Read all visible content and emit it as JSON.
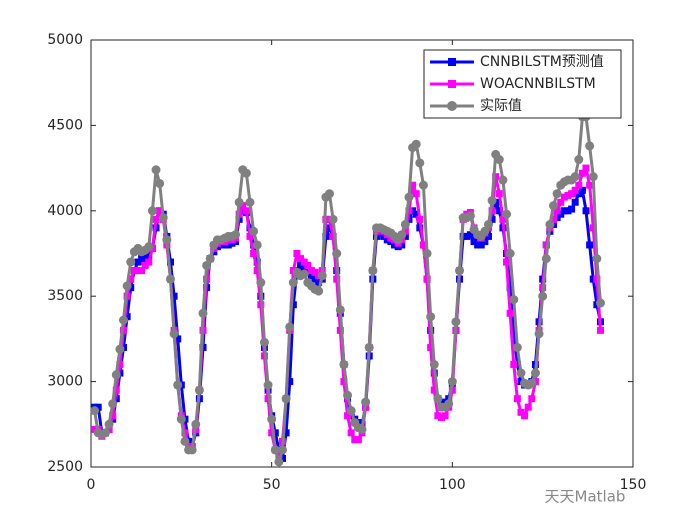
{
  "chart_data": {
    "type": "line",
    "x": [
      1,
      2,
      3,
      4,
      5,
      6,
      7,
      8,
      9,
      10,
      11,
      12,
      13,
      14,
      15,
      16,
      17,
      18,
      19,
      20,
      21,
      22,
      23,
      24,
      25,
      26,
      27,
      28,
      29,
      30,
      31,
      32,
      33,
      34,
      35,
      36,
      37,
      38,
      39,
      40,
      41,
      42,
      43,
      44,
      45,
      46,
      47,
      48,
      49,
      50,
      51,
      52,
      53,
      54,
      55,
      56,
      57,
      58,
      59,
      60,
      61,
      62,
      63,
      64,
      65,
      66,
      67,
      68,
      69,
      70,
      71,
      72,
      73,
      74,
      75,
      76,
      77,
      78,
      79,
      80,
      81,
      82,
      83,
      84,
      85,
      86,
      87,
      88,
      89,
      90,
      91,
      92,
      93,
      94,
      95,
      96,
      97,
      98,
      99,
      100,
      101,
      102,
      103,
      104,
      105,
      106,
      107,
      108,
      109,
      110,
      111,
      112,
      113,
      114,
      115,
      116,
      117,
      118,
      119,
      120,
      121,
      122,
      123,
      124,
      125,
      126,
      127,
      128,
      129,
      130,
      131,
      132,
      133,
      134,
      135,
      136,
      137,
      138,
      139,
      140,
      141
    ],
    "series": [
      {
        "name": "CNNBILSTM预测值",
        "color": "#0000ff",
        "marker": "square",
        "values": [
          2850,
          2850,
          2700,
          2700,
          2720,
          2780,
          2900,
          3050,
          3200,
          3380,
          3550,
          3650,
          3700,
          3720,
          3720,
          3740,
          3780,
          3900,
          4000,
          3980,
          3850,
          3700,
          3500,
          3250,
          2980,
          2780,
          2650,
          2620,
          2700,
          2900,
          3200,
          3550,
          3720,
          3760,
          3790,
          3800,
          3800,
          3800,
          3810,
          3820,
          3950,
          4000,
          3990,
          3900,
          3800,
          3700,
          3500,
          3200,
          2950,
          2800,
          2700,
          2600,
          2550,
          2700,
          3000,
          3450,
          3650,
          3680,
          3660,
          3650,
          3620,
          3600,
          3580,
          3600,
          3850,
          3900,
          3850,
          3650,
          3400,
          3100,
          2900,
          2800,
          2780,
          2760,
          2750,
          2850,
          3150,
          3600,
          3850,
          3870,
          3850,
          3830,
          3820,
          3800,
          3790,
          3800,
          3850,
          3950,
          4000,
          3980,
          3900,
          3800,
          3600,
          3300,
          3050,
          2900,
          2870,
          2880,
          2900,
          2990,
          3300,
          3600,
          3850,
          3850,
          3860,
          3820,
          3800,
          3800,
          3820,
          3850,
          3950,
          4050,
          4000,
          3900,
          3750,
          3550,
          3300,
          3100,
          3000,
          2980,
          2980,
          3000,
          3100,
          3350,
          3600,
          3800,
          3880,
          3920,
          3960,
          3980,
          4000,
          4000,
          4010,
          4050,
          4100,
          4120,
          4000,
          3800,
          3600,
          3450,
          3350
        ]
      },
      {
        "name": "WOACNNBILSTM",
        "color": "#ff00ff",
        "marker": "square",
        "values": [
          2720,
          2720,
          2680,
          2700,
          2720,
          2800,
          2950,
          3100,
          3300,
          3500,
          3600,
          3650,
          3650,
          3650,
          3680,
          3700,
          3780,
          3950,
          4000,
          3950,
          3800,
          3600,
          3300,
          2980,
          2800,
          2700,
          2620,
          2620,
          2720,
          2950,
          3300,
          3600,
          3720,
          3780,
          3810,
          3820,
          3820,
          3830,
          3830,
          3840,
          3980,
          4030,
          4000,
          3850,
          3750,
          3650,
          3450,
          3150,
          2900,
          2700,
          2600,
          2570,
          2650,
          2900,
          3300,
          3650,
          3750,
          3720,
          3700,
          3680,
          3650,
          3640,
          3620,
          3650,
          3950,
          3950,
          3850,
          3600,
          3300,
          3000,
          2800,
          2700,
          2660,
          2660,
          2700,
          2850,
          3200,
          3650,
          3880,
          3900,
          3880,
          3860,
          3840,
          3830,
          3810,
          3830,
          3880,
          4000,
          4150,
          4100,
          3950,
          3800,
          3600,
          3200,
          2950,
          2800,
          2790,
          2800,
          2850,
          2950,
          3300,
          3650,
          3950,
          3980,
          3990,
          3900,
          3860,
          3840,
          3870,
          3900,
          4000,
          4200,
          4100,
          3950,
          3700,
          3400,
          3100,
          2900,
          2820,
          2800,
          2850,
          2900,
          3000,
          3300,
          3550,
          3800,
          3900,
          3950,
          4000,
          4050,
          4080,
          4090,
          4100,
          4120,
          4150,
          4220,
          4250,
          4150,
          3900,
          3600,
          3300
        ]
      },
      {
        "name": "实际值",
        "color": "#808080",
        "marker": "circle",
        "values": [
          2830,
          2700,
          2690,
          2700,
          2750,
          2870,
          3040,
          3190,
          3360,
          3560,
          3700,
          3760,
          3780,
          3760,
          3770,
          3790,
          4000,
          4240,
          4160,
          3960,
          3830,
          3600,
          3280,
          2980,
          2780,
          2650,
          2600,
          2600,
          2750,
          2950,
          3400,
          3680,
          3720,
          3800,
          3830,
          3830,
          3840,
          3850,
          3850,
          3860,
          4050,
          4240,
          4220,
          4050,
          3880,
          3800,
          3580,
          3230,
          2980,
          2780,
          2600,
          2530,
          2600,
          2900,
          3320,
          3580,
          3640,
          3620,
          3630,
          3580,
          3560,
          3540,
          3530,
          3620,
          4080,
          4100,
          3950,
          3750,
          3420,
          3100,
          2920,
          2830,
          2760,
          2730,
          2720,
          2880,
          3200,
          3650,
          3900,
          3900,
          3890,
          3880,
          3870,
          3850,
          3830,
          3860,
          3920,
          4080,
          4370,
          4390,
          4280,
          4150,
          3750,
          3380,
          3100,
          2900,
          2850,
          2850,
          2870,
          3000,
          3350,
          3650,
          3960,
          3960,
          3970,
          3890,
          3860,
          3850,
          3880,
          3920,
          4060,
          4330,
          4300,
          4180,
          3980,
          3750,
          3480,
          3200,
          3050,
          2990,
          2980,
          2990,
          3050,
          3280,
          3500,
          3720,
          3920,
          4030,
          4100,
          4150,
          4170,
          4180,
          4180,
          4200,
          4300,
          4550,
          4550,
          4380,
          4200,
          3720,
          3460
        ]
      }
    ],
    "xlim": [
      0,
      150
    ],
    "xticks": [
      0,
      50,
      100,
      150
    ],
    "ylim": [
      2500,
      5000
    ],
    "yticks": [
      2500,
      3000,
      3500,
      4000,
      4500,
      5000
    ],
    "legend": "upper right",
    "watermark": "天天Matlab"
  }
}
